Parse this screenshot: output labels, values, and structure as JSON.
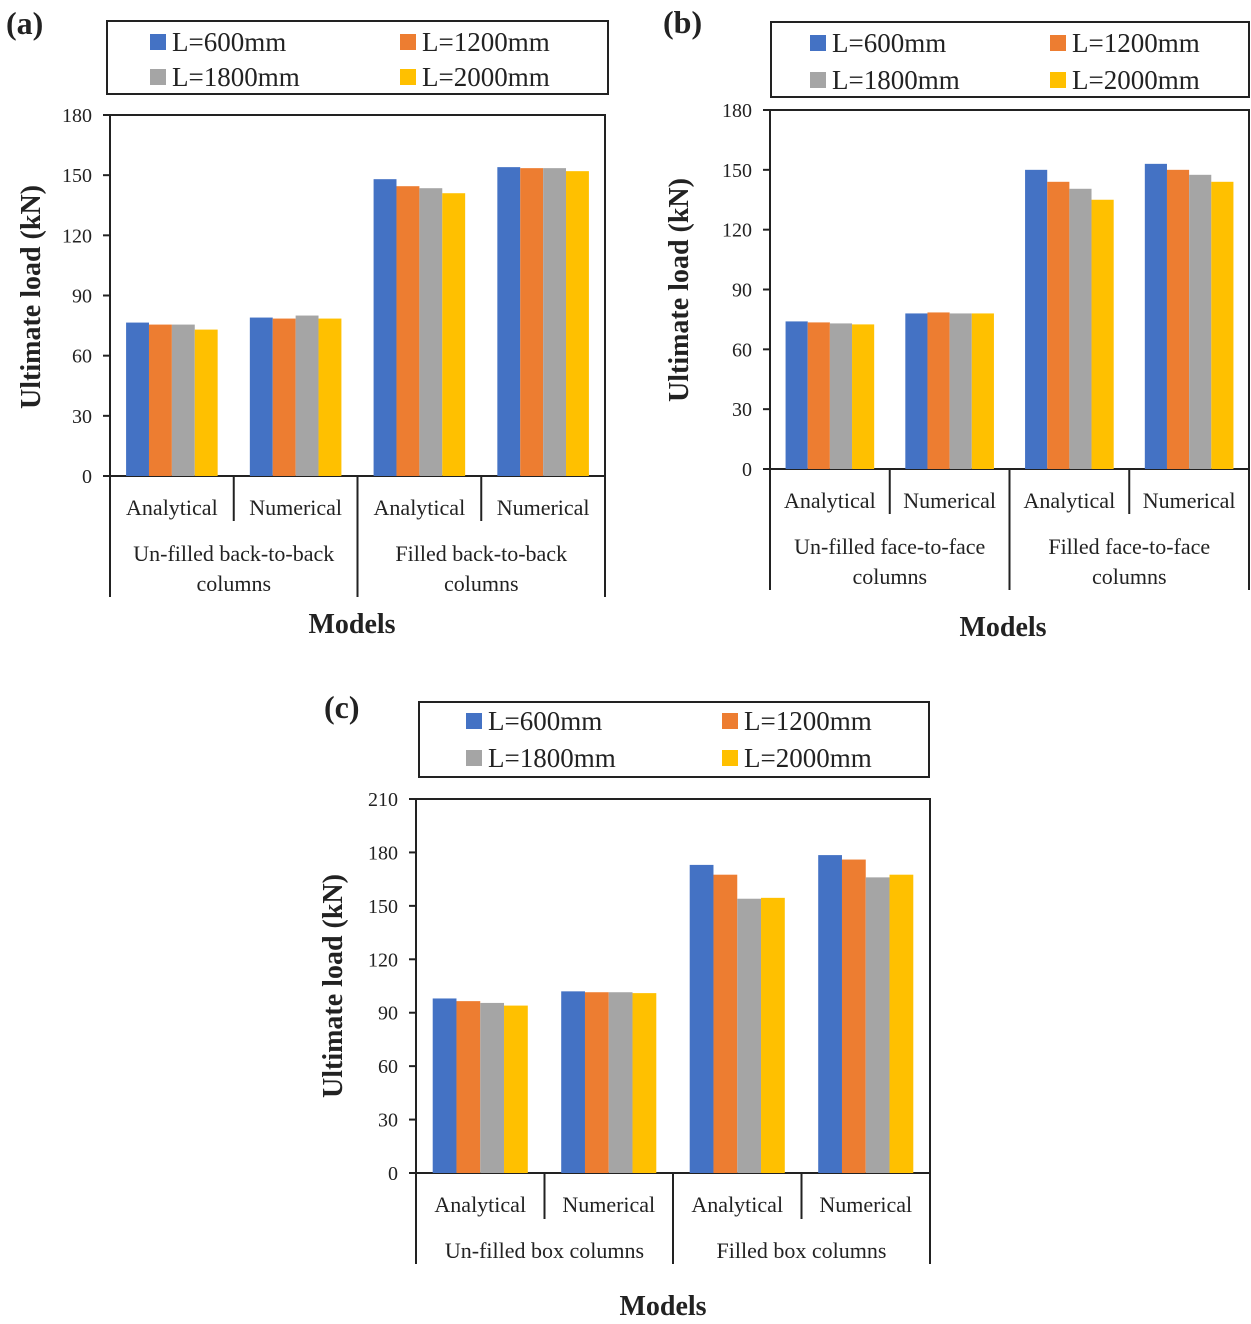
{
  "colors": {
    "L600": "#4472c4",
    "L1200": "#ed7d31",
    "L1800": "#a5a5a5",
    "L2000": "#ffc000"
  },
  "chart_data": [
    {
      "type": "bar",
      "panel_label": "(a)",
      "ylabel": "Ultimate load (kN)",
      "xlabel": "Models",
      "ylim": [
        0,
        180
      ],
      "yticks": [
        0,
        30,
        60,
        90,
        120,
        150,
        180
      ],
      "categories": [
        "Analytical",
        "Numerical",
        "Analytical",
        "Numerical"
      ],
      "groups": [
        {
          "label_lines": [
            "Un-filled back-to-back",
            "columns"
          ],
          "span": [
            0,
            1
          ]
        },
        {
          "label_lines": [
            "Filled back-to-back",
            "columns"
          ],
          "span": [
            2,
            3
          ]
        }
      ],
      "legend": [
        "L=600mm",
        "L=1200mm",
        "L=1800mm",
        "L=2000mm"
      ],
      "series": [
        {
          "name": "L=600mm",
          "color_key": "L600",
          "values": [
            76.5,
            79,
            148,
            154
          ]
        },
        {
          "name": "L=1200mm",
          "color_key": "L1200",
          "values": [
            75.5,
            78.5,
            144.5,
            153.5
          ]
        },
        {
          "name": "L=1800mm",
          "color_key": "L1800",
          "values": [
            75.5,
            80,
            143.5,
            153.5
          ]
        },
        {
          "name": "L=2000mm",
          "color_key": "L2000",
          "values": [
            73,
            78.5,
            141,
            152
          ]
        }
      ]
    },
    {
      "type": "bar",
      "panel_label": "(b)",
      "ylabel": "Ultimate load (kN)",
      "xlabel": "Models",
      "ylim": [
        0,
        180
      ],
      "yticks": [
        0,
        30,
        60,
        90,
        120,
        150,
        180
      ],
      "categories": [
        "Analytical",
        "Numerical",
        "Analytical",
        "Numerical"
      ],
      "groups": [
        {
          "label_lines": [
            "Un-filled face-to-face",
            "columns"
          ],
          "span": [
            0,
            1
          ]
        },
        {
          "label_lines": [
            "Filled face-to-face",
            "columns"
          ],
          "span": [
            2,
            3
          ]
        }
      ],
      "legend": [
        "L=600mm",
        "L=1200mm",
        "L=1800mm",
        "L=2000mm"
      ],
      "series": [
        {
          "name": "L=600mm",
          "color_key": "L600",
          "values": [
            74,
            78,
            150,
            153
          ]
        },
        {
          "name": "L=1200mm",
          "color_key": "L1200",
          "values": [
            73.5,
            78.5,
            144,
            150
          ]
        },
        {
          "name": "L=1800mm",
          "color_key": "L1800",
          "values": [
            73,
            78,
            140.5,
            147.5
          ]
        },
        {
          "name": "L=2000mm",
          "color_key": "L2000",
          "values": [
            72.5,
            78,
            135,
            144
          ]
        }
      ]
    },
    {
      "type": "bar",
      "panel_label": "(c)",
      "ylabel": "Ultimate load (kN)",
      "xlabel": "Models",
      "ylim": [
        0,
        210
      ],
      "yticks": [
        0,
        30,
        60,
        90,
        120,
        150,
        180,
        210
      ],
      "categories": [
        "Analytical",
        "Numerical",
        "Analytical",
        "Numerical"
      ],
      "groups": [
        {
          "label_lines": [
            "Un-filled box columns"
          ],
          "span": [
            0,
            1
          ]
        },
        {
          "label_lines": [
            "Filled box columns"
          ],
          "span": [
            2,
            3
          ]
        }
      ],
      "legend": [
        "L=600mm",
        "L=1200mm",
        "L=1800mm",
        "L=2000mm"
      ],
      "series": [
        {
          "name": "L=600mm",
          "color_key": "L600",
          "values": [
            98,
            102,
            173,
            178.5
          ]
        },
        {
          "name": "L=1200mm",
          "color_key": "L1200",
          "values": [
            96.5,
            101.5,
            167.5,
            176
          ]
        },
        {
          "name": "L=1800mm",
          "color_key": "L1800",
          "values": [
            95.5,
            101.5,
            154,
            166
          ]
        },
        {
          "name": "L=2000mm",
          "color_key": "L2000",
          "values": [
            94,
            101,
            154.5,
            167.5
          ]
        }
      ]
    }
  ]
}
